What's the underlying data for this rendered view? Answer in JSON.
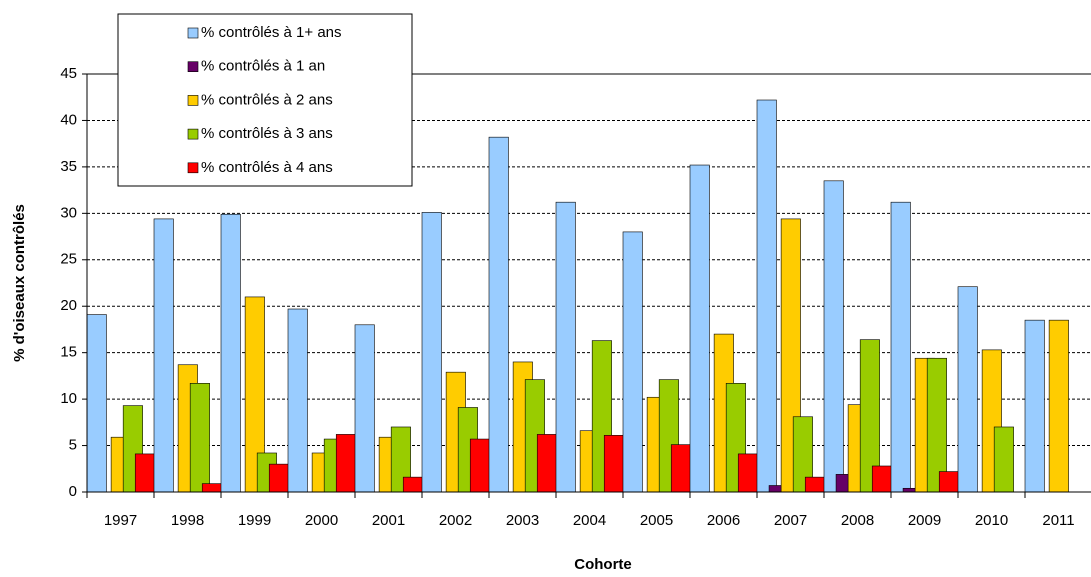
{
  "chart_data": {
    "type": "bar",
    "y_label": "% d'oiseaux contrôlés",
    "x_label": "Cohorte",
    "categories": [
      "1997",
      "1998",
      "1999",
      "2000",
      "2001",
      "2002",
      "2003",
      "2004",
      "2005",
      "2006",
      "2007",
      "2008",
      "2009",
      "2010",
      "2011"
    ],
    "series": [
      {
        "name": "% contrôlés à 1+ ans",
        "color": "#99ccff",
        "values": [
          19.1,
          29.4,
          29.9,
          19.7,
          18,
          30.1,
          38.2,
          31.2,
          28,
          35.2,
          42.2,
          33.5,
          31.2,
          22.1,
          18.5
        ]
      },
      {
        "name": "% contrôlés à 1 an",
        "color": "#660066",
        "values": [
          0,
          0,
          0,
          0,
          0,
          0,
          0,
          0,
          0,
          0,
          0.7,
          1.9,
          0.4,
          0,
          0
        ]
      },
      {
        "name": "% contrôlés à 2 ans",
        "color": "#ffcc00",
        "values": [
          5.9,
          13.7,
          21,
          4.2,
          5.9,
          12.9,
          14,
          6.6,
          10.2,
          17,
          29.4,
          9.4,
          14.4,
          15.3,
          18.5
        ]
      },
      {
        "name": "% contrôlés à 3 ans",
        "color": "#99cc00",
        "values": [
          9.3,
          11.7,
          4.2,
          5.7,
          7,
          9.1,
          12.1,
          16.3,
          12.1,
          11.7,
          8.1,
          16.4,
          14.4,
          7,
          null
        ]
      },
      {
        "name": "% contrôlés à 4 ans",
        "color": "#ff0000",
        "values": [
          4.1,
          0.9,
          3,
          6.2,
          1.6,
          5.7,
          6.2,
          6.1,
          5.1,
          4.1,
          1.6,
          2.8,
          2.2,
          0,
          null
        ]
      }
    ],
    "ylim": [
      0,
      45
    ],
    "yticks": [
      0,
      5,
      10,
      15,
      20,
      25,
      30,
      35,
      40,
      45
    ],
    "grid": true,
    "legend": "top-left"
  }
}
